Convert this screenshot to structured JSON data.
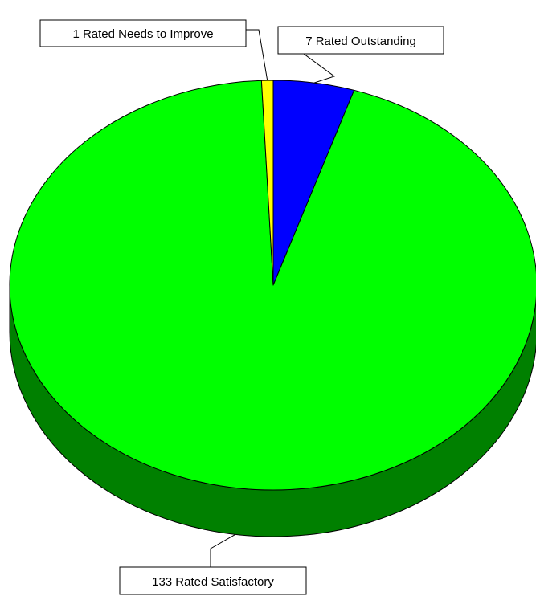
{
  "chart_data": {
    "type": "pie",
    "style": "3d-tilted",
    "title": "",
    "legend": "none",
    "categories": [
      "Rated Outstanding",
      "Rated Satisfactory",
      "Rated Needs to Improve"
    ],
    "values": [
      7,
      133,
      1
    ],
    "slice_labels": [
      "7 Rated Outstanding",
      "133 Rated Satisfactory",
      "1 Rated Needs to Improve"
    ],
    "colors": {
      "outstanding": "#0000ff",
      "satisfactory": "#00ff00",
      "satisfactory_side": "#008000",
      "needs_to_improve": "#ffff00",
      "outline": "#000000"
    }
  }
}
